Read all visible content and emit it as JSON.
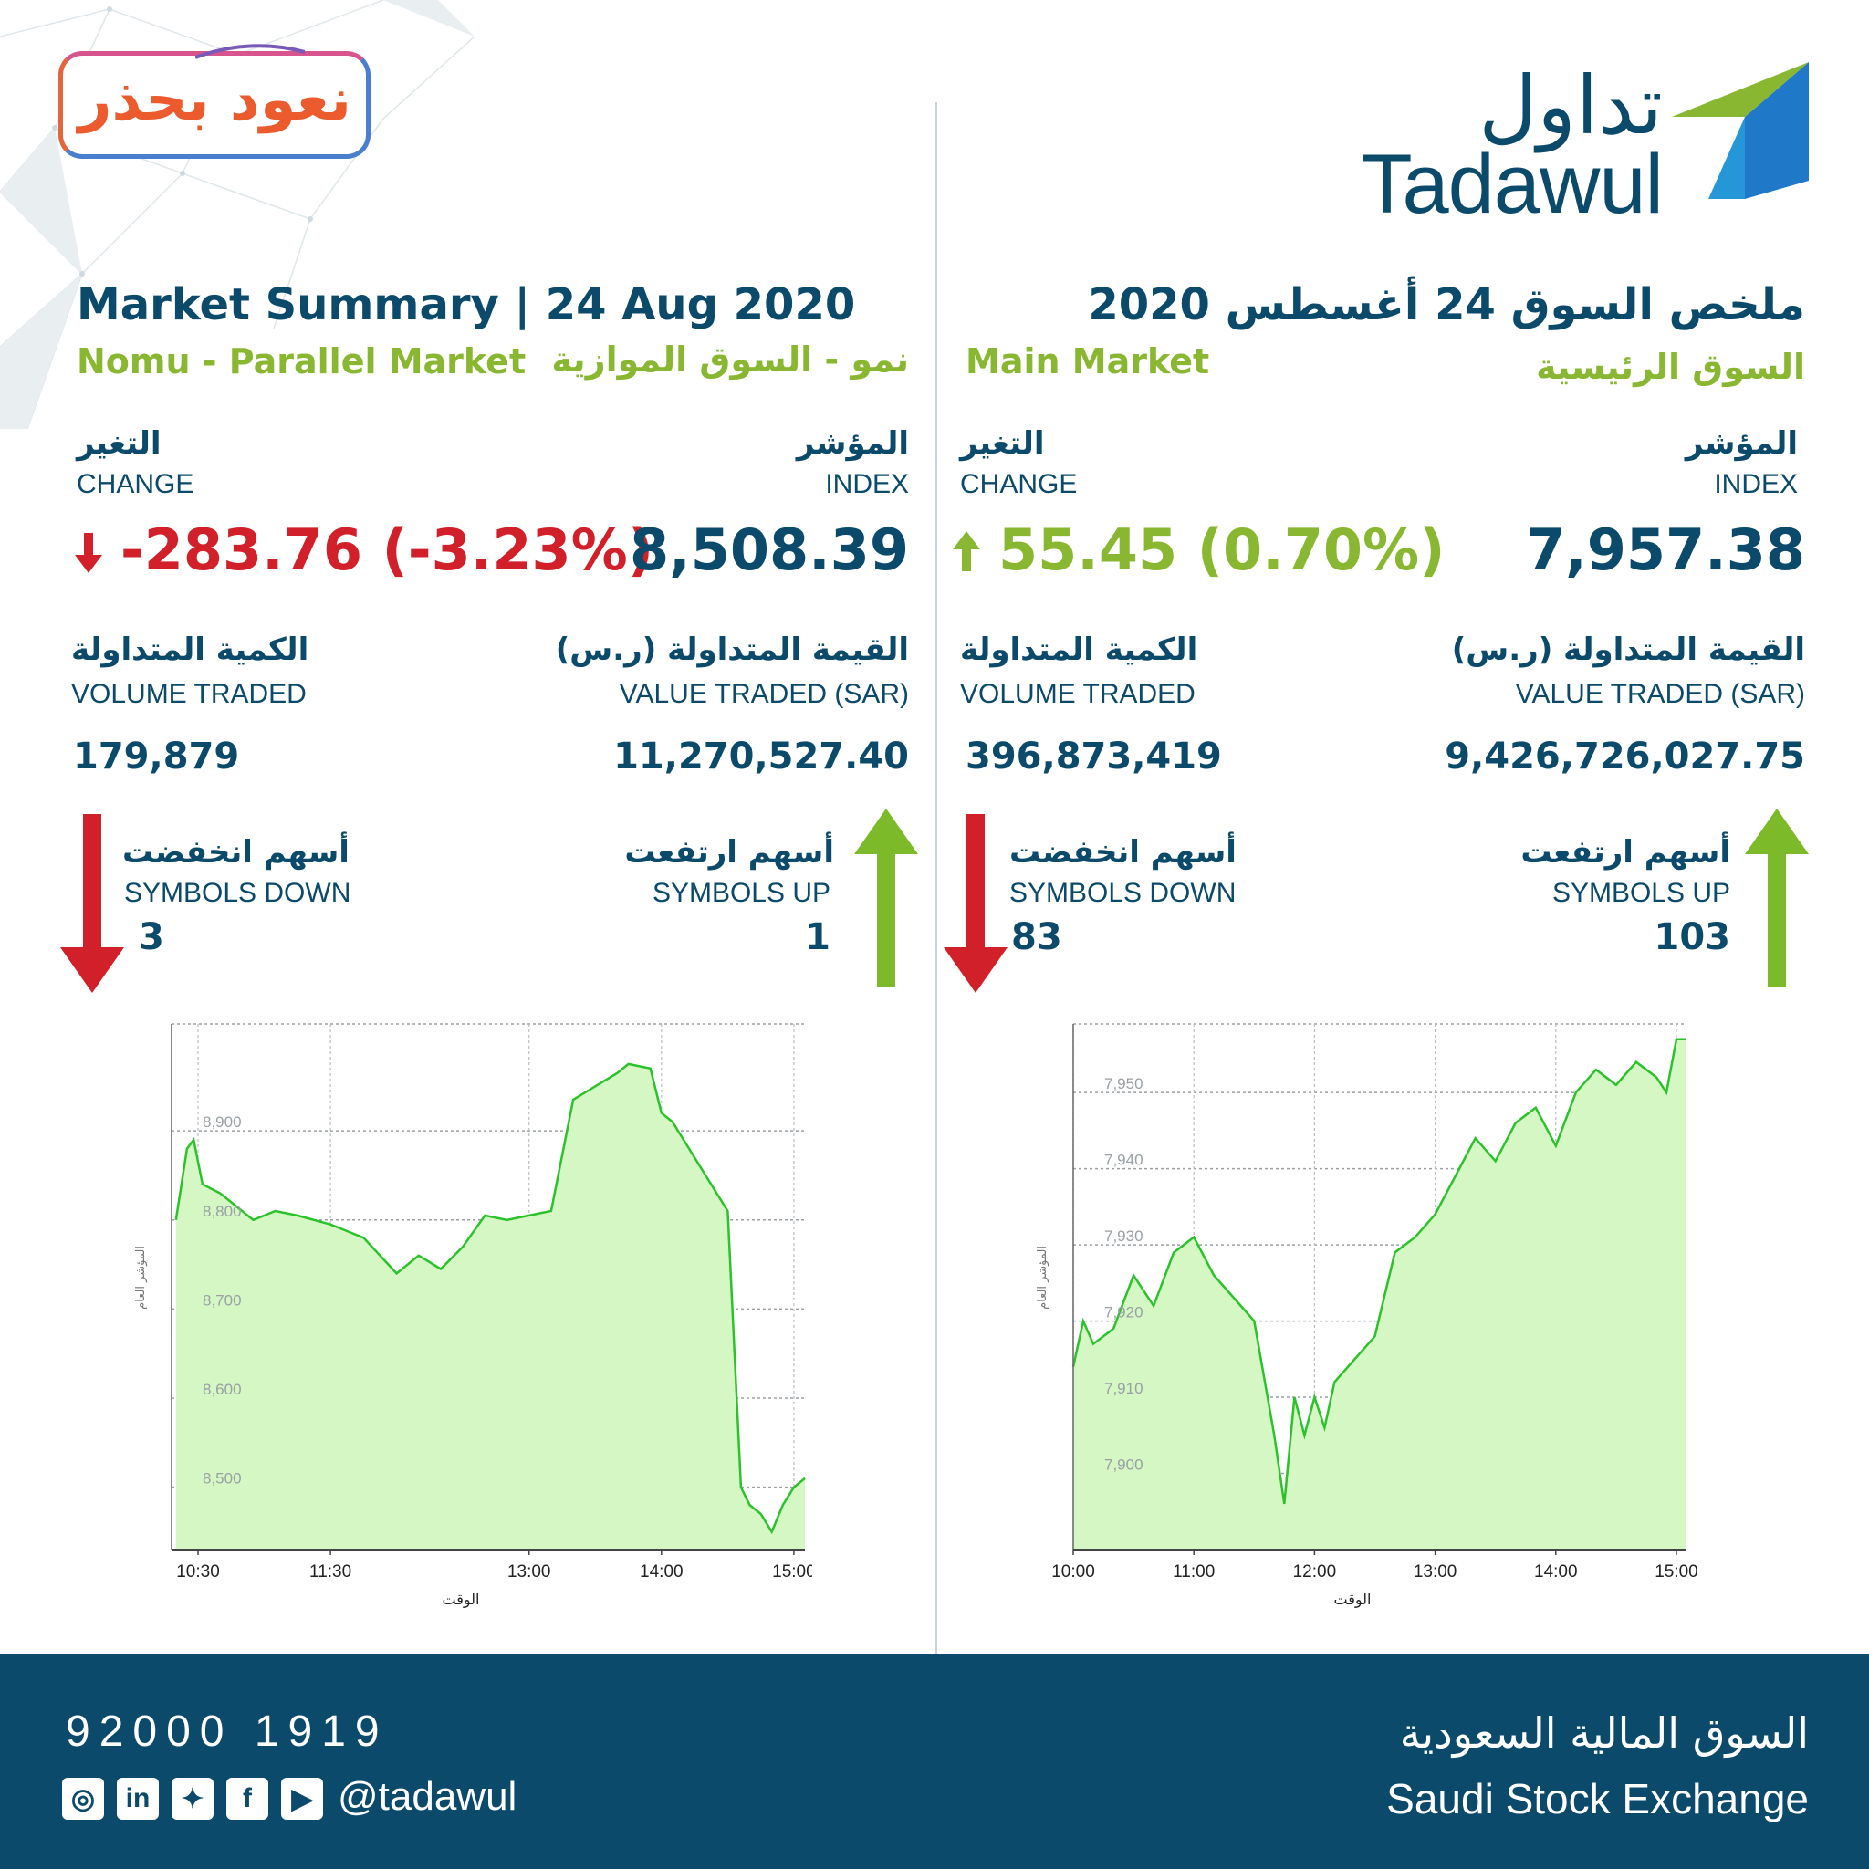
{
  "campaign": {
    "text": "نعود بحذر"
  },
  "logo": {
    "arabic": "تداول",
    "english": "Tadawul"
  },
  "header": {
    "title_en": "Market Summary | 24 Aug 2020",
    "title_ar": "ملخص السوق  24 أغسطس 2020"
  },
  "nomu": {
    "name_en": "Nomu - Parallel Market",
    "name_ar": "نمو - السوق الموازية",
    "index_label_ar": "المؤشر",
    "index_label_en": "INDEX",
    "index_value": "8,508.39",
    "change_label_ar": "التغير",
    "change_label_en": "CHANGE",
    "change_value": "-283.76 (-3.23%)",
    "value_traded_label_ar": "القيمة المتداولة (ر.س)",
    "value_traded_label_en": "VALUE TRADED (SAR)",
    "value_traded": "11,270,527.40",
    "volume_label_ar": "الكمية المتداولة",
    "volume_label_en": "VOLUME TRADED",
    "volume": "179,879",
    "up_label_ar": "أسهم ارتفعت",
    "up_label_en": "SYMBOLS UP",
    "up_count": "1",
    "down_label_ar": "أسهم انخفضت",
    "down_label_en": "SYMBOLS DOWN",
    "down_count": "3"
  },
  "main": {
    "name_en": "Main Market",
    "name_ar": "السوق الرئيسية",
    "index_label_ar": "المؤشر",
    "index_label_en": "INDEX",
    "index_value": "7,957.38",
    "change_label_ar": "التغير",
    "change_label_en": "CHANGE",
    "change_value": "55.45 (0.70%)",
    "value_traded_label_ar": "القيمة المتداولة (ر.س)",
    "value_traded_label_en": "VALUE TRADED (SAR)",
    "value_traded": "9,426,726,027.75",
    "volume_label_ar": "الكمية المتداولة",
    "volume_label_en": "VOLUME TRADED",
    "volume": "396,873,419",
    "up_label_ar": "أسهم ارتفعت",
    "up_label_en": "SYMBOLS UP",
    "up_count": "103",
    "down_label_ar": "أسهم انخفضت",
    "down_label_en": "SYMBOLS DOWN",
    "down_count": "83"
  },
  "footer": {
    "phone": "92000 1919",
    "handle": "@tadawul",
    "social_icons": [
      "instagram-icon",
      "linkedin-icon",
      "twitter-icon",
      "facebook-icon",
      "youtube-icon"
    ],
    "exchange_ar": "السوق المالية السعودية",
    "exchange_en": "Saudi Stock Exchange"
  },
  "colors": {
    "navy": "#0b4a6b",
    "green": "#8ab732",
    "red": "#d2202a",
    "fill": "#d4f7c4",
    "line": "#2cc22c"
  },
  "chart_data": [
    {
      "type": "area",
      "market": "Nomu",
      "xlabel": "الوقت",
      "ylabel": "المؤشر العام",
      "x_ticks": [
        "10:30",
        "11:30",
        "13:00",
        "14:00",
        "15:00"
      ],
      "y_ticks": [
        "8,500",
        "8,600",
        "8,700",
        "8,800",
        "8,900"
      ],
      "ylim": [
        8430,
        9020
      ],
      "x": [
        "10:20",
        "10:25",
        "10:28",
        "10:32",
        "10:40",
        "10:55",
        "11:05",
        "11:15",
        "11:30",
        "11:45",
        "12:00",
        "12:10",
        "12:20",
        "12:30",
        "12:40",
        "12:50",
        "13:00",
        "13:10",
        "13:20",
        "13:30",
        "13:40",
        "13:45",
        "13:55",
        "14:00",
        "14:05",
        "14:10",
        "14:20",
        "14:30",
        "14:36",
        "14:40",
        "14:45",
        "14:50",
        "14:55",
        "15:00",
        "15:05"
      ],
      "values": [
        8800,
        8880,
        8890,
        8840,
        8830,
        8800,
        8810,
        8805,
        8795,
        8780,
        8740,
        8760,
        8745,
        8770,
        8805,
        8800,
        8805,
        8810,
        8935,
        8950,
        8965,
        8975,
        8970,
        8920,
        8910,
        8890,
        8850,
        8810,
        8500,
        8480,
        8470,
        8450,
        8480,
        8500,
        8510
      ],
      "grid": true
    },
    {
      "type": "area",
      "market": "Main",
      "xlabel": "الوقت",
      "ylabel": "المؤشر العام",
      "x_ticks": [
        "10:00",
        "11:00",
        "12:00",
        "13:00",
        "14:00",
        "15:00"
      ],
      "y_ticks": [
        "7,900",
        "7,910",
        "7,920",
        "7,930",
        "7,940",
        "7,950"
      ],
      "ylim": [
        7890,
        7959
      ],
      "x": [
        "10:00",
        "10:05",
        "10:10",
        "10:20",
        "10:30",
        "10:40",
        "10:50",
        "11:00",
        "11:10",
        "11:20",
        "11:30",
        "11:40",
        "11:45",
        "11:50",
        "11:55",
        "12:00",
        "12:05",
        "12:10",
        "12:20",
        "12:30",
        "12:40",
        "12:50",
        "13:00",
        "13:10",
        "13:20",
        "13:30",
        "13:40",
        "13:50",
        "14:00",
        "14:10",
        "14:20",
        "14:30",
        "14:40",
        "14:50",
        "14:55",
        "15:00",
        "15:05"
      ],
      "values": [
        7914,
        7920,
        7917,
        7919,
        7926,
        7922,
        7929,
        7931,
        7926,
        7923,
        7920,
        7905,
        7896,
        7910,
        7905,
        7910,
        7906,
        7912,
        7915,
        7918,
        7929,
        7931,
        7934,
        7939,
        7944,
        7941,
        7946,
        7948,
        7943,
        7950,
        7953,
        7951,
        7954,
        7952,
        7950,
        7957,
        7957
      ],
      "grid": true
    }
  ]
}
